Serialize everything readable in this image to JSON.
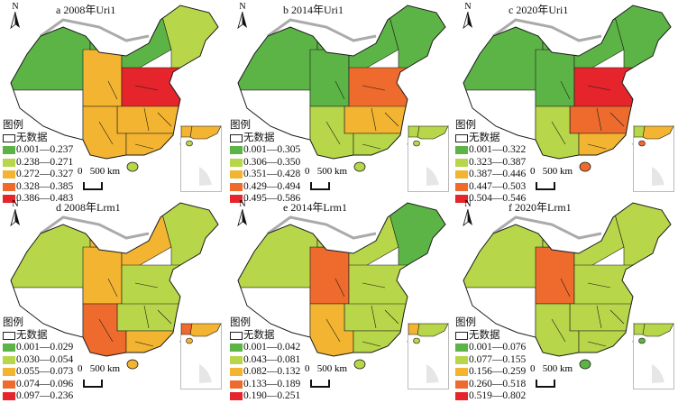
{
  "colors": {
    "nodata": "#ffffff",
    "classes": [
      "#5db446",
      "#b7d649",
      "#f3b431",
      "#ee6b2d",
      "#e5242b"
    ],
    "border": "#1a1a1a",
    "sea": "#cfcfcf"
  },
  "common": {
    "legend_title": "图例",
    "nodata_label": "无数据",
    "north_label": "N",
    "scale_label": "0   500 km"
  },
  "panels": [
    {
      "title": "a 2008年Uri1",
      "legend": [
        "0.001—0.237",
        "0.238—0.271",
        "0.272—0.327",
        "0.328—0.385",
        "0.386—0.483"
      ],
      "zones": {
        "xinjiang": 0,
        "tibet": -1,
        "qinghai": 2,
        "inner_mongolia": 0,
        "northeast": 1,
        "north_plain": 4,
        "central": 2,
        "southwest": 2,
        "south": 2,
        "hainan": 1
      }
    },
    {
      "title": "b 2014年Uri1",
      "legend": [
        "0.001—0.305",
        "0.306—0.350",
        "0.351—0.428",
        "0.429—0.494",
        "0.495—0.586"
      ],
      "zones": {
        "xinjiang": 0,
        "tibet": -1,
        "qinghai": 0,
        "inner_mongolia": 0,
        "northeast": 0,
        "north_plain": 3,
        "central": 2,
        "southwest": 1,
        "south": 1,
        "hainan": 1
      }
    },
    {
      "title": "c 2020年Uri1",
      "legend": [
        "0.001—0.322",
        "0.323—0.387",
        "0.387—0.446",
        "0.447—0.503",
        "0.504—0.546"
      ],
      "zones": {
        "xinjiang": 0,
        "tibet": -1,
        "qinghai": 0,
        "inner_mongolia": 0,
        "northeast": 0,
        "north_plain": 4,
        "central": 3,
        "southwest": 1,
        "south": 2,
        "hainan": 3
      }
    },
    {
      "title": "d 2008年Lrm1",
      "legend": [
        "0.001—0.029",
        "0.030—0.054",
        "0.055—0.073",
        "0.074—0.096",
        "0.097—0.236"
      ],
      "zones": {
        "xinjiang": 1,
        "tibet": -1,
        "qinghai": 2,
        "inner_mongolia": 2,
        "northeast": 1,
        "north_plain": 1,
        "central": 1,
        "southwest": 3,
        "south": 2,
        "hainan": 2
      }
    },
    {
      "title": "e 2014年Lrm1",
      "legend": [
        "0.001—0.042",
        "0.043—0.081",
        "0.082—0.132",
        "0.133—0.189",
        "0.190—0.251"
      ],
      "zones": {
        "xinjiang": 1,
        "tibet": -1,
        "qinghai": 3,
        "inner_mongolia": 1,
        "northeast": 0,
        "north_plain": 1,
        "central": 1,
        "southwest": 2,
        "south": 1,
        "hainan": 1
      }
    },
    {
      "title": "f 2020年Lrm1",
      "legend": [
        "0.001—0.076",
        "0.077—0.155",
        "0.156—0.259",
        "0.260—0.518",
        "0.519—0.802"
      ],
      "zones": {
        "xinjiang": 1,
        "tibet": -1,
        "qinghai": 3,
        "inner_mongolia": 1,
        "northeast": 1,
        "north_plain": 1,
        "central": 1,
        "southwest": 1,
        "south": 1,
        "hainan": 0
      }
    }
  ]
}
